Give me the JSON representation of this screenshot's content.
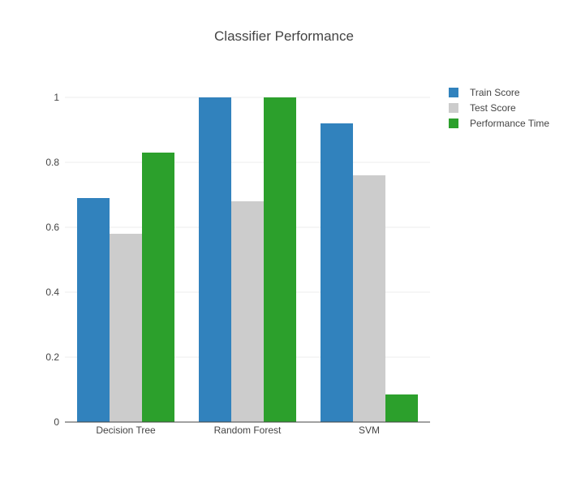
{
  "chart_data": {
    "type": "bar",
    "title": "Classifier Performance",
    "xlabel": "",
    "ylabel": "",
    "categories": [
      "Decision Tree",
      "Random Forest",
      "SVM"
    ],
    "series": [
      {
        "name": "Train Score",
        "color": "#3182bd",
        "values": [
          0.69,
          1.0,
          0.92
        ]
      },
      {
        "name": "Test Score",
        "color": "#cccccc",
        "values": [
          0.58,
          0.68,
          0.76
        ]
      },
      {
        "name": "Performance Time",
        "color": "#2ca02c",
        "values": [
          0.83,
          1.0,
          0.085
        ]
      }
    ],
    "ylim": [
      0,
      1
    ],
    "yticks": [
      "0",
      "0.2",
      "0.4",
      "0.6",
      "0.8",
      "1"
    ],
    "grid": true,
    "legend_position": "top-right"
  }
}
